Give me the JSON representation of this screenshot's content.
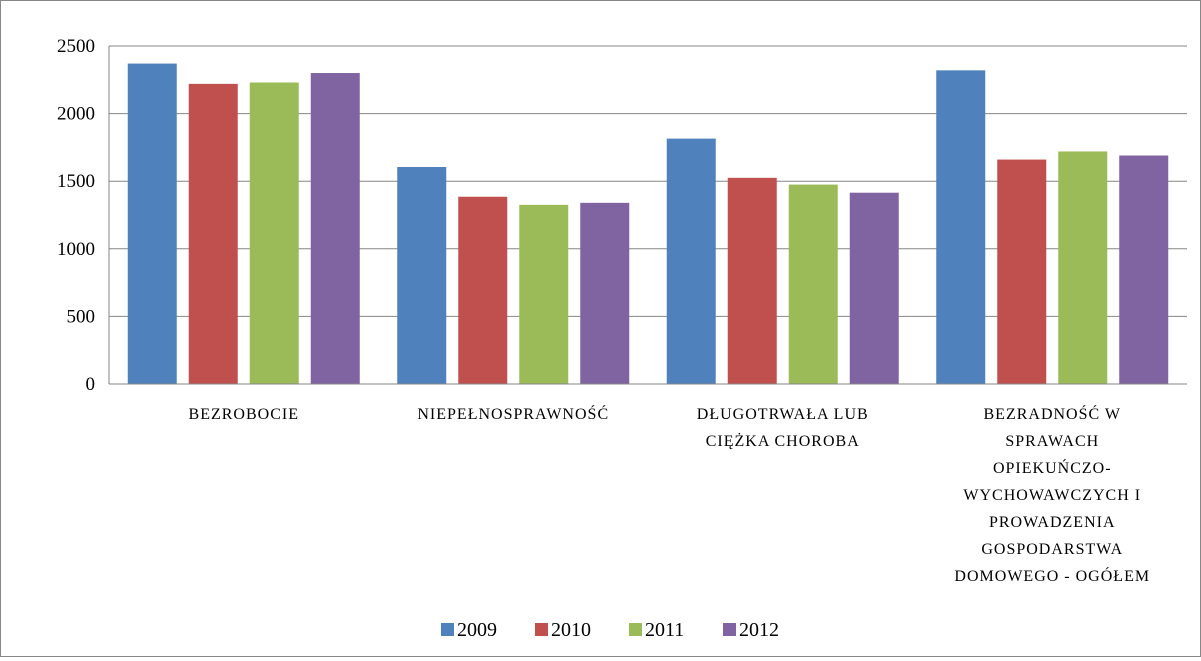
{
  "chart_data": {
    "type": "bar",
    "categories": [
      [
        "BEZROBOCIE"
      ],
      [
        "NIEPEŁNOSPRAWNOŚĆ"
      ],
      [
        "DŁUGOTRWAŁA LUB",
        "CIĘŻKA CHOROBA"
      ],
      [
        "BEZRADNOŚĆ W",
        "SPRAWACH",
        "OPIEKUŃCZO-",
        "WYCHOWAWCZYCH I",
        "PROWADZENIA",
        "GOSPODARSTWA",
        "DOMOWEGO - OGÓŁEM"
      ]
    ],
    "series": [
      {
        "name": "2009",
        "color": "#4F81BD",
        "values": [
          2370,
          1605,
          1815,
          2320
        ]
      },
      {
        "name": "2010",
        "color": "#C0504D",
        "values": [
          2220,
          1385,
          1525,
          1660
        ]
      },
      {
        "name": "2011",
        "color": "#9BBB59",
        "values": [
          2230,
          1325,
          1475,
          1720
        ]
      },
      {
        "name": "2012",
        "color": "#8064A2",
        "values": [
          2300,
          1340,
          1415,
          1690
        ]
      }
    ],
    "ylim": [
      0,
      2500
    ],
    "yticks": [
      0,
      500,
      1000,
      1500,
      2000,
      2500
    ],
    "grid": true,
    "legend": "bottom"
  }
}
